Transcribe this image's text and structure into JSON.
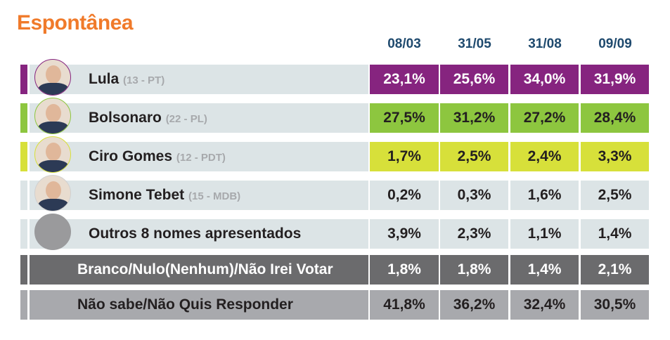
{
  "chart_data": {
    "type": "table",
    "title": "Espontânea",
    "columns": [
      "08/03",
      "31/05",
      "31/08",
      "09/09"
    ],
    "rows": [
      {
        "name": "Lula",
        "party": "(13 - PT)",
        "values": [
          "23,1%",
          "25,6%",
          "34,0%",
          "31,9%"
        ],
        "color": "#86247f",
        "text_color": "#ffffff",
        "photo": true
      },
      {
        "name": "Bolsonaro",
        "party": "(22 - PL)",
        "values": [
          "27,5%",
          "31,2%",
          "27,2%",
          "28,4%"
        ],
        "color": "#8dc63f",
        "text_color": "#231f20",
        "photo": true
      },
      {
        "name": "Ciro Gomes",
        "party": "(12 - PDT)",
        "values": [
          "1,7%",
          "2,5%",
          "2,4%",
          "3,3%"
        ],
        "color": "#d7e03a",
        "text_color": "#231f20",
        "photo": true
      },
      {
        "name": "Simone Tebet",
        "party": "(15 - MDB)",
        "values": [
          "0,2%",
          "0,3%",
          "1,6%",
          "2,5%"
        ],
        "color": "#dce4e6",
        "text_color": "#231f20",
        "photo": true
      },
      {
        "name": "Outros 8 nomes apresentados",
        "party": "",
        "values": [
          "3,9%",
          "2,3%",
          "1,1%",
          "1,4%"
        ],
        "color": "#dce4e6",
        "text_color": "#231f20",
        "photo": false
      },
      {
        "name": "Branco/Nulo(Nenhum)/Não Irei Votar",
        "party": "",
        "values": [
          "1,8%",
          "1,8%",
          "1,4%",
          "2,1%"
        ],
        "color": "#6b6b6d",
        "text_color": "#ffffff",
        "photo": false
      },
      {
        "name": "Não sabe/Não Quis Responder",
        "party": "",
        "values": [
          "41,8%",
          "36,2%",
          "32,4%",
          "30,5%"
        ],
        "color": "#a8a9ad",
        "text_color": "#231f20",
        "photo": false
      }
    ]
  }
}
